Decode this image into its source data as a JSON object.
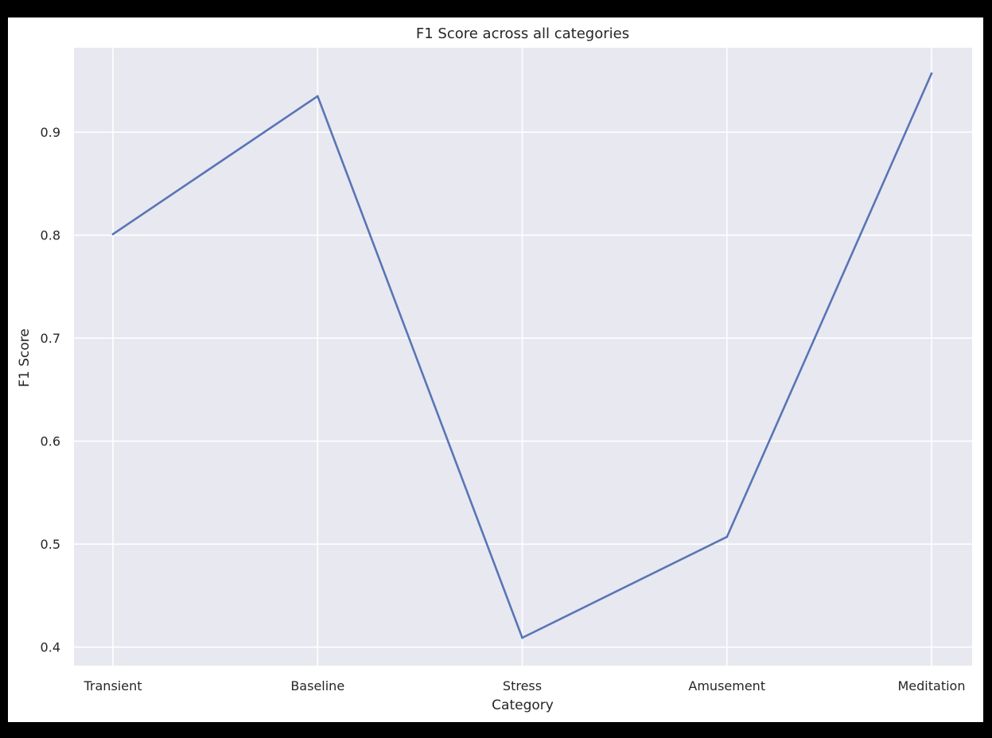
{
  "chart_data": {
    "type": "line",
    "title": "F1 Score across all categories",
    "xlabel": "Category",
    "ylabel": "F1 Score",
    "categories": [
      "Transient",
      "Baseline",
      "Stress",
      "Amusement",
      "Meditation"
    ],
    "series": [
      {
        "values": [
          0.801,
          0.935,
          0.409,
          0.507,
          0.957
        ],
        "color": "#5975b6"
      }
    ],
    "yticks": [
      "0.4",
      "0.5",
      "0.6",
      "0.7",
      "0.8",
      "0.9"
    ],
    "ylim": [
      0.382,
      0.982
    ],
    "grid": true,
    "background_color": "#e8e8f0",
    "grid_color": "#ffffff"
  }
}
